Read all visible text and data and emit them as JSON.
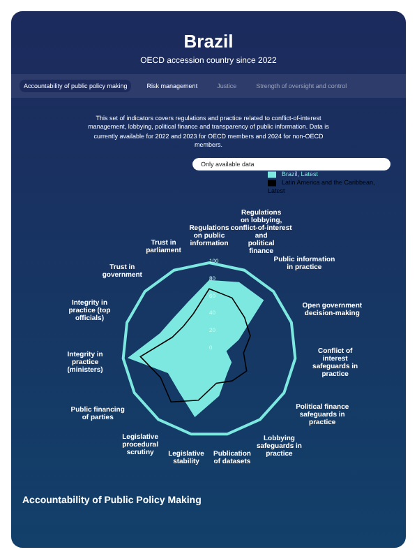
{
  "chart_data": {
    "type": "radar",
    "title": "Brazil",
    "subtitle": "OECD accession country since 2022",
    "annotations": [
      "Accountability of public policy making",
      "Risk management",
      "Justice",
      "Strength of oversight and control",
      "This set of indicators covers regulations and practice related to conflict-of-interest management, lobbying, political finance and transparency of public information. Data is currently available for 2022 and 2023 for OECD members and 2024 for non-OECD members.",
      "Only available data",
      "Accountability of Public Policy Making"
    ],
    "categories": [
      "Regulations on public information",
      "Regulations on lobbying, conflict-of-interest and political finance",
      "Public information in practice",
      "Open government decision-making",
      "Conflict of interest safeguards in practice",
      "Political finance safeguards in practice",
      "Lobbying safeguards in practice",
      "Publication of datasets",
      "Legislative stability",
      "Legislative procedural scrutiny",
      "Public financing of parties",
      "Integrity in practice (ministers)",
      "Integrity in practice (top officials)",
      "Trust in government",
      "Trust in parliament"
    ],
    "series": [
      {
        "name": "Brazil, Latest",
        "color": "#7de8e0",
        "values": [
          80,
          85,
          85,
          36,
          20,
          30,
          35,
          55,
          80,
          60,
          55,
          95,
          60,
          55,
          60
        ]
      },
      {
        "name": "Latin America and the Caribbean, Latest",
        "color": "#000000",
        "values": [
          70,
          65,
          55,
          50,
          40,
          50,
          45,
          40,
          60,
          75,
          65,
          80,
          45,
          40,
          45
        ]
      }
    ],
    "ylim": [
      0,
      100
    ],
    "yticks": [
      0,
      20,
      40,
      60,
      80,
      100
    ],
    "legend": "top right"
  }
}
